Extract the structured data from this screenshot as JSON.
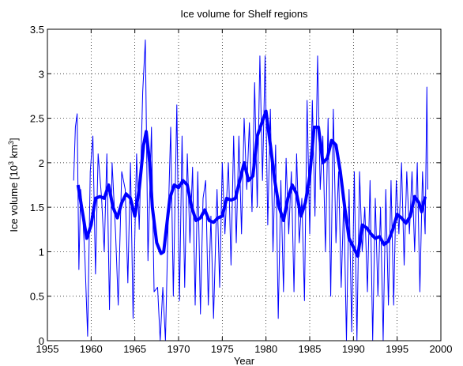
{
  "chart_data": {
    "type": "line",
    "title": "Ice volume for Shelf regions",
    "xlabel": "Year",
    "ylabel": [
      "Ice volume [10",
      "3",
      " km",
      "3",
      "]"
    ],
    "xlim": [
      1955,
      2000
    ],
    "xticks": [
      1955,
      1960,
      1965,
      1970,
      1975,
      1980,
      1985,
      1990,
      1995,
      2000
    ],
    "ylim": [
      0,
      3.5
    ],
    "yticks": [
      0,
      0.5,
      1,
      1.5,
      2,
      2.5,
      3,
      3.5
    ],
    "grid": true,
    "series": [
      {
        "color": "#0000ff",
        "width": 1,
        "x": [
          1958.0,
          1958.2,
          1958.4,
          1958.6,
          1958.8,
          1959.0,
          1959.3,
          1959.6,
          1959.9,
          1960.2,
          1960.5,
          1960.8,
          1961.2,
          1961.5,
          1961.8,
          1962.1,
          1962.4,
          1962.8,
          1963.1,
          1963.5,
          1963.9,
          1964.2,
          1964.5,
          1964.8,
          1965.2,
          1965.5,
          1965.9,
          1966.2,
          1966.5,
          1966.9,
          1967.2,
          1967.6,
          1967.9,
          1968.2,
          1968.5,
          1968.8,
          1969.1,
          1969.4,
          1969.8,
          1970.1,
          1970.4,
          1970.7,
          1971.0,
          1971.3,
          1971.6,
          1971.9,
          1972.2,
          1972.5,
          1972.8,
          1973.1,
          1973.4,
          1973.7,
          1974.0,
          1974.4,
          1974.7,
          1975.0,
          1975.3,
          1975.7,
          1976.0,
          1976.3,
          1976.6,
          1976.9,
          1977.2,
          1977.5,
          1977.8,
          1978.1,
          1978.4,
          1978.7,
          1979.0,
          1979.3,
          1979.6,
          1979.9,
          1980.2,
          1980.5,
          1980.8,
          1981.1,
          1981.4,
          1981.7,
          1982.0,
          1982.3,
          1982.6,
          1982.9,
          1983.2,
          1983.5,
          1983.8,
          1984.1,
          1984.4,
          1984.7,
          1985.0,
          1985.3,
          1985.6,
          1985.9,
          1986.2,
          1986.5,
          1986.8,
          1987.1,
          1987.4,
          1987.7,
          1988.0,
          1988.3,
          1988.6,
          1988.9,
          1989.2,
          1989.5,
          1989.8,
          1990.1,
          1990.4,
          1990.7,
          1991.0,
          1991.3,
          1991.6,
          1991.9,
          1992.2,
          1992.5,
          1992.8,
          1993.1,
          1993.4,
          1993.7,
          1994.0,
          1994.3,
          1994.6,
          1994.9,
          1995.2,
          1995.5,
          1995.8,
          1996.1,
          1996.4,
          1996.7,
          1997.0,
          1997.3,
          1997.6,
          1997.9,
          1998.2,
          1998.4,
          1998.5
        ],
        "values": [
          1.8,
          2.4,
          2.55,
          0.8,
          1.7,
          1.5,
          0.9,
          0.05,
          1.9,
          2.3,
          0.75,
          2.1,
          1.6,
          1.0,
          2.1,
          0.35,
          2.0,
          1.2,
          0.4,
          1.9,
          1.7,
          0.65,
          2.0,
          0.25,
          2.1,
          1.25,
          2.8,
          3.38,
          0.9,
          2.4,
          0.55,
          0.6,
          0.0,
          0.6,
          0.0,
          1.3,
          2.4,
          0.5,
          2.65,
          0.45,
          2.3,
          0.6,
          2.1,
          1.1,
          1.95,
          0.4,
          1.9,
          0.3,
          1.6,
          1.8,
          0.4,
          1.4,
          0.25,
          1.7,
          0.6,
          2.0,
          1.2,
          2.0,
          0.85,
          2.3,
          1.1,
          2.3,
          1.2,
          2.5,
          1.7,
          2.45,
          1.45,
          2.9,
          1.5,
          3.2,
          1.8,
          3.2,
          1.3,
          2.6,
          1.0,
          2.2,
          0.25,
          1.8,
          0.55,
          2.05,
          1.2,
          1.9,
          0.55,
          2.1,
          1.1,
          1.6,
          0.45,
          2.7,
          1.2,
          2.7,
          1.4,
          3.2,
          1.7,
          2.3,
          1.0,
          2.5,
          0.5,
          2.6,
          1.1,
          1.9,
          0.6,
          1.6,
          0.0,
          1.7,
          0.1,
          1.9,
          0.0,
          1.9,
          1.0,
          1.5,
          0.55,
          1.8,
          0.0,
          1.6,
          0.5,
          1.5,
          0.0,
          1.7,
          0.4,
          1.8,
          0.4,
          1.8,
          1.2,
          2.0,
          0.85,
          1.9,
          1.2,
          1.9,
          1.0,
          2.0,
          0.55,
          1.9,
          1.2,
          2.85,
          1.7
        ]
      },
      {
        "color": "#0000ff",
        "width": 4,
        "x": [
          1958.5,
          1959,
          1959.5,
          1960,
          1960.5,
          1961,
          1961.5,
          1962,
          1962.5,
          1963,
          1963.5,
          1964,
          1964.5,
          1965,
          1965.5,
          1966,
          1966.3,
          1966.7,
          1967,
          1967.5,
          1968,
          1968.3,
          1969,
          1969.5,
          1970,
          1970.5,
          1971,
          1971.5,
          1972,
          1972.5,
          1973,
          1973.5,
          1974,
          1974.5,
          1975,
          1975.5,
          1976,
          1976.5,
          1977,
          1977.5,
          1978,
          1978.5,
          1979,
          1980,
          1980.5,
          1981,
          1981.5,
          1982,
          1982.5,
          1983,
          1983.5,
          1984,
          1984.5,
          1985,
          1985.5,
          1986,
          1986.5,
          1987,
          1987.5,
          1988,
          1988.5,
          1989,
          1989.5,
          1990,
          1990.5,
          1991,
          1991.5,
          1992,
          1992.5,
          1993,
          1993.5,
          1994,
          1994.5,
          1995,
          1995.5,
          1996,
          1996.5,
          1997,
          1997.5,
          1997.8,
          1998.2
        ],
        "values": [
          1.75,
          1.45,
          1.15,
          1.3,
          1.6,
          1.62,
          1.6,
          1.75,
          1.5,
          1.38,
          1.55,
          1.65,
          1.6,
          1.4,
          1.7,
          2.2,
          2.35,
          2.0,
          1.5,
          1.1,
          0.98,
          1.0,
          1.6,
          1.75,
          1.72,
          1.8,
          1.75,
          1.5,
          1.35,
          1.38,
          1.47,
          1.35,
          1.33,
          1.38,
          1.4,
          1.6,
          1.58,
          1.6,
          1.8,
          2.0,
          1.8,
          1.85,
          2.3,
          2.58,
          2.2,
          1.8,
          1.5,
          1.35,
          1.6,
          1.75,
          1.65,
          1.4,
          1.55,
          1.85,
          2.4,
          2.4,
          2.0,
          2.05,
          2.25,
          2.2,
          1.9,
          1.5,
          1.15,
          1.05,
          0.95,
          1.3,
          1.27,
          1.2,
          1.15,
          1.17,
          1.08,
          1.12,
          1.25,
          1.42,
          1.38,
          1.32,
          1.4,
          1.62,
          1.55,
          1.45,
          1.62
        ]
      }
    ]
  }
}
